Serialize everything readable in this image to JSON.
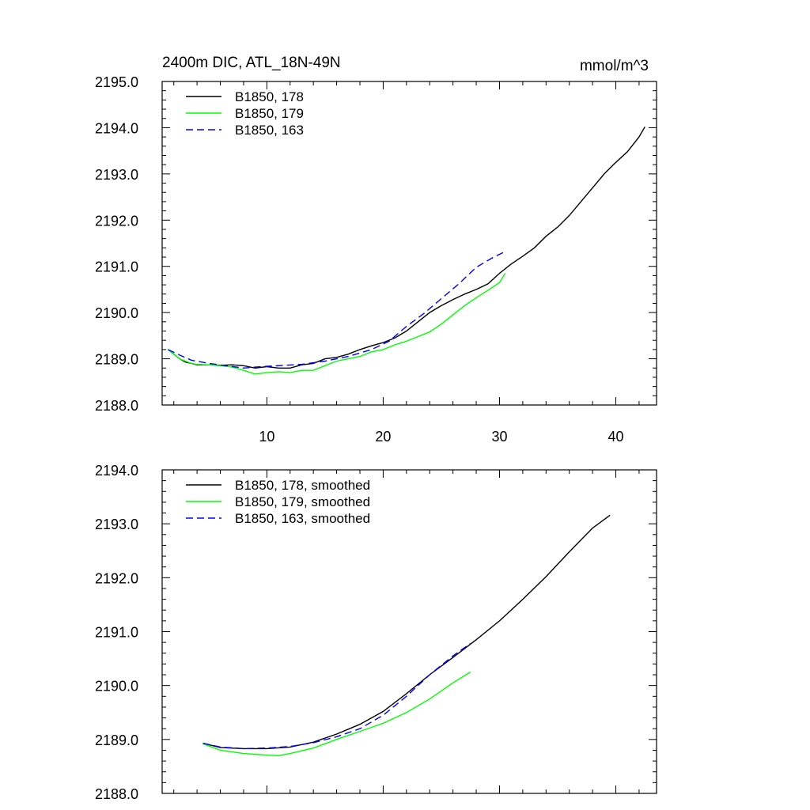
{
  "chart_data": [
    {
      "type": "line",
      "title": "2400m DIC, ATL_18N-49N",
      "units": "mmol/m^3",
      "xlabel": "",
      "ylabel": "",
      "xlim": [
        1,
        43.5
      ],
      "ylim": [
        2188.0,
        2195.0
      ],
      "yticks": [
        2188.0,
        2189.0,
        2190.0,
        2191.0,
        2192.0,
        2193.0,
        2194.0,
        2195.0
      ],
      "ytick_labels": [
        "2188.0",
        "2189.0",
        "2190.0",
        "2191.0",
        "2192.0",
        "2193.0",
        "2194.0",
        "2195.0"
      ],
      "xticks": [
        10,
        20,
        30,
        40
      ],
      "xtick_labels": [
        "10",
        "20",
        "30",
        "40"
      ],
      "legend_position": "top-left",
      "series": [
        {
          "name": "B1850, 178",
          "color": "#000000",
          "dash": "solid",
          "x": [
            1.5,
            2,
            2.5,
            3,
            3.5,
            4,
            5,
            6,
            7,
            8,
            9,
            10,
            11,
            12,
            13,
            14,
            15,
            16,
            17,
            18,
            19,
            20,
            21,
            22,
            23,
            24,
            25,
            26,
            27,
            28,
            29,
            30,
            31,
            32,
            33,
            34,
            35,
            36,
            37,
            38,
            39,
            40,
            41,
            42,
            42.5
          ],
          "y": [
            2189.2,
            2189.1,
            2189.0,
            2188.93,
            2188.9,
            2188.87,
            2188.87,
            2188.86,
            2188.87,
            2188.85,
            2188.8,
            2188.83,
            2188.8,
            2188.8,
            2188.87,
            2188.9,
            2189.0,
            2189.03,
            2189.1,
            2189.2,
            2189.28,
            2189.35,
            2189.45,
            2189.6,
            2189.8,
            2190.0,
            2190.15,
            2190.28,
            2190.4,
            2190.5,
            2190.62,
            2190.85,
            2191.05,
            2191.22,
            2191.4,
            2191.65,
            2191.85,
            2192.1,
            2192.4,
            2192.7,
            2193.0,
            2193.25,
            2193.48,
            2193.8,
            2194.02
          ]
        },
        {
          "name": "B1850, 179",
          "color": "#00ff00",
          "dash": "solid",
          "x": [
            1.5,
            2,
            2.5,
            3,
            3.5,
            4,
            5,
            6,
            7,
            8,
            9,
            10,
            11,
            12,
            13,
            14,
            15,
            16,
            17,
            18,
            19,
            20,
            21,
            22,
            23,
            24,
            25,
            26,
            27,
            28,
            29,
            30,
            30.5
          ],
          "y": [
            2189.2,
            2189.1,
            2189.0,
            2188.95,
            2188.9,
            2188.88,
            2188.87,
            2188.85,
            2188.82,
            2188.75,
            2188.67,
            2188.7,
            2188.72,
            2188.7,
            2188.75,
            2188.75,
            2188.85,
            2188.95,
            2189.0,
            2189.05,
            2189.15,
            2189.2,
            2189.3,
            2189.38,
            2189.48,
            2189.58,
            2189.75,
            2189.95,
            2190.15,
            2190.32,
            2190.48,
            2190.65,
            2190.85
          ]
        },
        {
          "name": "B1850, 163",
          "color": "#0000ff",
          "dash": "dashed",
          "x": [
            1.5,
            2.5,
            3.5,
            5,
            6.5,
            8,
            9.5,
            11,
            13,
            15,
            17,
            19,
            20.5,
            22,
            23.5,
            25,
            26.5,
            28,
            29.5,
            30.5
          ],
          "y": [
            2189.2,
            2189.08,
            2188.97,
            2188.9,
            2188.85,
            2188.8,
            2188.83,
            2188.85,
            2188.88,
            2188.95,
            2189.05,
            2189.2,
            2189.38,
            2189.7,
            2189.98,
            2190.3,
            2190.62,
            2190.98,
            2191.2,
            2191.32
          ]
        }
      ]
    },
    {
      "type": "line",
      "title": "",
      "xlabel": "",
      "ylabel": "",
      "xlim": [
        1,
        43.5
      ],
      "ylim": [
        2188.0,
        2194.0
      ],
      "yticks": [
        2188.0,
        2189.0,
        2190.0,
        2191.0,
        2192.0,
        2193.0,
        2194.0
      ],
      "ytick_labels": [
        "2188.0",
        "2189.0",
        "2190.0",
        "2191.0",
        "2192.0",
        "2193.0",
        "2194.0"
      ],
      "xticks": [
        10,
        20,
        30,
        40
      ],
      "legend_position": "top-left",
      "series": [
        {
          "name": "B1850, 178, smoothed",
          "color": "#000000",
          "dash": "solid",
          "x": [
            4.5,
            6,
            8,
            10,
            12,
            14,
            16,
            18,
            20,
            22,
            24,
            26,
            28,
            30,
            32,
            34,
            36,
            38,
            39.5
          ],
          "y": [
            2188.93,
            2188.85,
            2188.83,
            2188.83,
            2188.86,
            2188.95,
            2189.1,
            2189.28,
            2189.52,
            2189.85,
            2190.2,
            2190.52,
            2190.85,
            2191.2,
            2191.6,
            2192.02,
            2192.48,
            2192.92,
            2193.16
          ]
        },
        {
          "name": "B1850, 179, smoothed",
          "color": "#00ff00",
          "dash": "solid",
          "x": [
            4.5,
            6,
            8,
            10,
            11,
            12,
            14,
            16,
            18,
            20,
            22,
            24,
            26,
            27.5
          ],
          "y": [
            2188.92,
            2188.8,
            2188.74,
            2188.71,
            2188.7,
            2188.74,
            2188.84,
            2189.0,
            2189.15,
            2189.3,
            2189.5,
            2189.75,
            2190.05,
            2190.25
          ]
        },
        {
          "name": "B1850, 163, smoothed",
          "color": "#0000ff",
          "dash": "dashed",
          "x": [
            4.5,
            6,
            8,
            10,
            12,
            14,
            16,
            18,
            20,
            22,
            24,
            26,
            27.5
          ],
          "y": [
            2188.93,
            2188.86,
            2188.83,
            2188.84,
            2188.87,
            2188.94,
            2189.05,
            2189.2,
            2189.45,
            2189.8,
            2190.2,
            2190.55,
            2190.78
          ]
        }
      ]
    }
  ]
}
